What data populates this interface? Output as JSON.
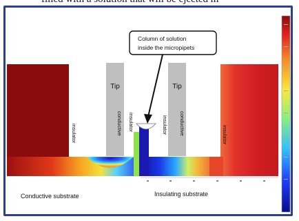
{
  "caption_fragment": "filled with a solution that will be ejected m",
  "callout": {
    "line1": "Column of solution",
    "line2": "inside the micropipets"
  },
  "tips": {
    "left_label": "Tip",
    "right_label": "Tip"
  },
  "layers": {
    "insulator": "insulator",
    "conductive": "conductive"
  },
  "substrates": {
    "left": "Conductive substrate",
    "right": "Insulating substrate"
  },
  "colors": {
    "frame": "#2d3f8f",
    "block_dark_red": "#8a0c0c",
    "tip_gray": "#bfbfbf",
    "solution_green": "#8fe34a"
  }
}
